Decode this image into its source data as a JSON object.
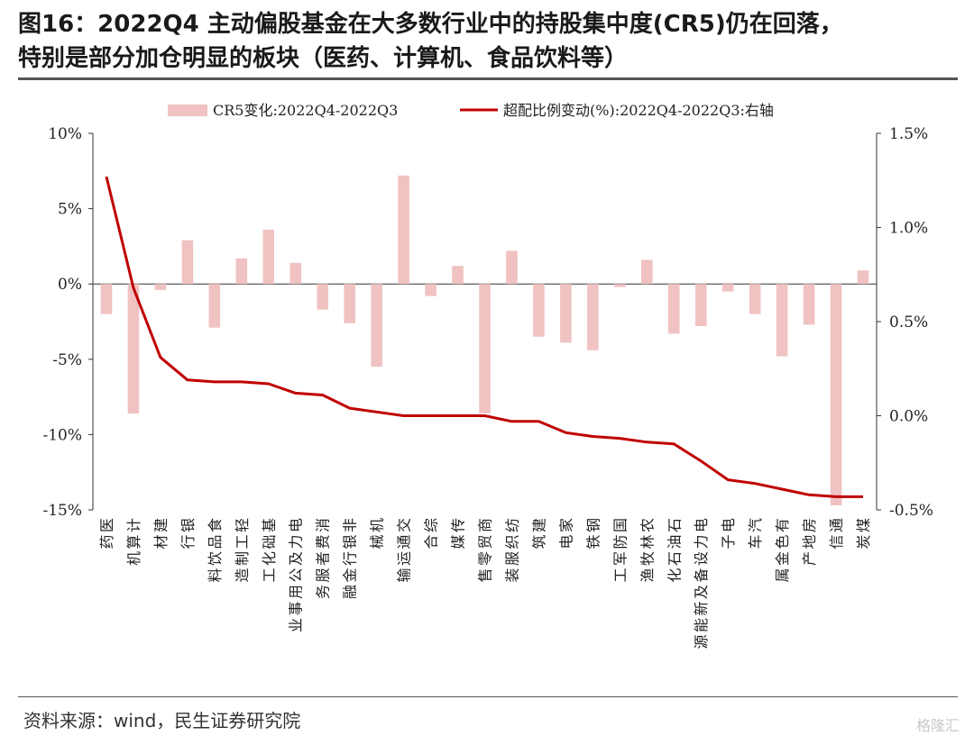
{
  "header": {
    "title_line1": "图16：2022Q4 主动偏股基金在大多数行业中的持股集中度(CR5)仍在回落，",
    "title_line2": "特别是部分加仓明显的板块（医药、计算机、食品饮料等）"
  },
  "footer": {
    "source": "资料来源：wind，民生证券研究院",
    "watermark": "格隆汇"
  },
  "chart_data": {
    "type": "bar",
    "categories": [
      "医药",
      "计算机",
      "建材",
      "银行",
      "食品饮料",
      "轻工制造",
      "基础化工",
      "电力及公用事业",
      "消费者服务",
      "非银行金融",
      "机械",
      "交通运输",
      "综合",
      "传媒",
      "商贸零售",
      "纺织服装",
      "建筑",
      "家电",
      "钢铁",
      "国防军工",
      "农林牧渔",
      "石油石化",
      "电力设备及新能源",
      "电子",
      "汽车",
      "有色金属",
      "房地产",
      "通信",
      "煤炭"
    ],
    "series": [
      {
        "name": "CR5变化:2022Q4-2022Q3",
        "type": "bar",
        "axis": "left",
        "color": "#f0c2c2",
        "values": [
          -2.0,
          -8.6,
          -0.4,
          2.9,
          -2.9,
          1.7,
          3.6,
          1.4,
          -1.7,
          -2.6,
          -5.5,
          7.2,
          -0.8,
          1.2,
          -8.6,
          2.2,
          -3.5,
          -3.9,
          -4.4,
          -0.2,
          1.6,
          -3.3,
          -2.8,
          -0.5,
          -2.0,
          -4.8,
          -2.7,
          -14.7,
          0.9
        ]
      },
      {
        "name": "超配比例变动(%):2022Q4-2022Q3:右轴",
        "type": "line",
        "axis": "right",
        "color": "#c00000",
        "values": [
          1.27,
          0.68,
          0.31,
          0.19,
          0.18,
          0.18,
          0.17,
          0.12,
          0.11,
          0.04,
          0.02,
          0.0,
          0.0,
          0.0,
          0.0,
          -0.03,
          -0.03,
          -0.09,
          -0.11,
          -0.12,
          -0.14,
          -0.15,
          -0.24,
          -0.34,
          -0.36,
          -0.39,
          -0.42,
          -0.43,
          -0.43
        ]
      }
    ],
    "y_left": {
      "min": -15,
      "max": 10,
      "ticks": [
        10,
        5,
        0,
        -5,
        -10,
        -15
      ],
      "tick_labels": [
        "10%",
        "5%",
        "0%",
        "-5%",
        "-10%",
        "-15%"
      ]
    },
    "y_right": {
      "min": -0.5,
      "max": 1.5,
      "ticks": [
        1.5,
        1.0,
        0.5,
        0.0,
        -0.5
      ],
      "tick_labels": [
        "1.5%",
        "1.0%",
        "0.5%",
        "0.0%",
        "-0.5%"
      ]
    },
    "legend_position": "top",
    "grid": false
  }
}
